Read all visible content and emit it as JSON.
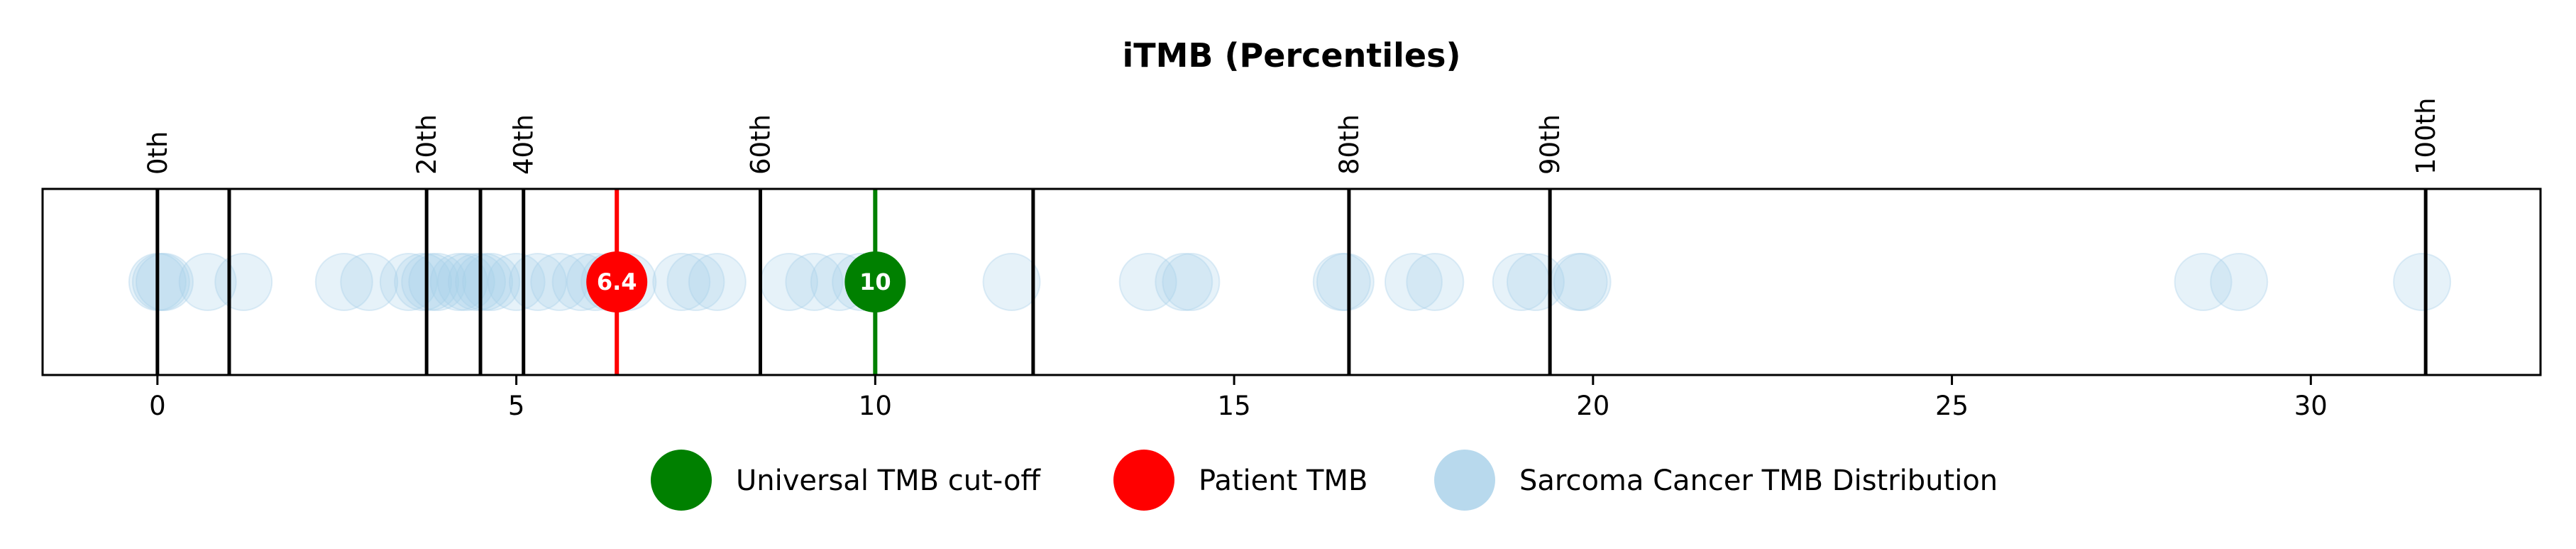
{
  "chart_data": {
    "type": "scatter",
    "title": "iTMB (Percentiles)",
    "xlabel": "",
    "ylabel": "",
    "xlim": [
      -1.6,
      33.2
    ],
    "x_ticks": [
      0,
      5,
      10,
      15,
      20,
      25,
      30
    ],
    "percentile_lines": [
      {
        "x": 0.0,
        "label": "0th"
      },
      {
        "x": 1.0,
        "label": ""
      },
      {
        "x": 3.75,
        "label": "20th"
      },
      {
        "x": 4.5,
        "label": ""
      },
      {
        "x": 5.1,
        "label": "40th"
      },
      {
        "x": 6.4,
        "label": ""
      },
      {
        "x": 8.4,
        "label": "60th"
      },
      {
        "x": 12.2,
        "label": ""
      },
      {
        "x": 16.6,
        "label": "80th"
      },
      {
        "x": 19.4,
        "label": "90th"
      },
      {
        "x": 31.6,
        "label": "100th"
      }
    ],
    "series": [
      {
        "name": "Sarcoma Cancer TMB Distribution",
        "color": "#a6cfe8",
        "values": [
          0.0,
          0.05,
          0.1,
          0.7,
          1.2,
          2.6,
          2.95,
          3.5,
          3.7,
          3.8,
          3.9,
          4.2,
          4.3,
          4.45,
          4.55,
          4.65,
          5.0,
          5.3,
          5.6,
          5.9,
          6.1,
          6.3,
          6.55,
          7.3,
          7.5,
          7.8,
          8.8,
          9.15,
          9.5,
          9.8,
          11.9,
          13.8,
          14.3,
          14.4,
          16.5,
          16.55,
          17.5,
          17.8,
          19.0,
          19.2,
          19.8,
          19.85,
          28.5,
          29.0,
          31.55
        ]
      },
      {
        "name": "Patient TMB",
        "color": "#ff0000",
        "values": [
          6.4
        ],
        "label": "6.4"
      },
      {
        "name": "Universal TMB cut-off",
        "color": "#008000",
        "values": [
          10
        ],
        "label": "10"
      }
    ],
    "legend": {
      "placement": "bottom-center",
      "order": [
        "Universal TMB cut-off",
        "Patient TMB",
        "Sarcoma Cancer TMB Distribution"
      ]
    },
    "grid": false
  }
}
